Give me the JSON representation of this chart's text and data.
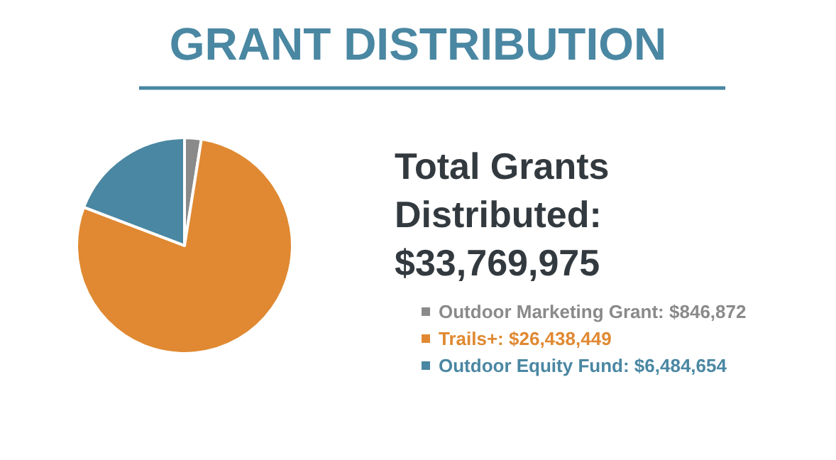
{
  "chart_data": {
    "type": "pie",
    "title": "GRANT DISTRIBUTION",
    "annotations": [
      "Total Grants Distributed: $33,769,975"
    ],
    "categories": [
      "Outdoor Marketing Grant",
      "Trails+",
      "Outdoor Equity Fund"
    ],
    "values": [
      846872,
      26438449,
      6484654
    ],
    "value_labels": [
      "$846,872",
      "$26,438,449",
      "$6,484,654"
    ],
    "colors": [
      "#8a8a8a",
      "#e08932",
      "#4a87a2"
    ],
    "legend": "right"
  }
}
